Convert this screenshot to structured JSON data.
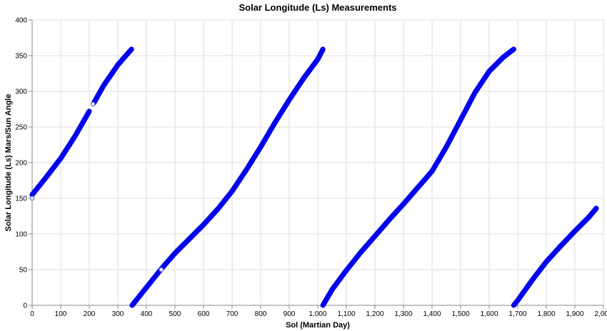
{
  "chart_data": {
    "type": "scatter",
    "title": "Solar Longitude (Ls) Measurements",
    "xlabel": "Sol (Martian Day)",
    "ylabel": "Solar Longitude (Ls) Mars/Sun Angle",
    "xlim": [
      0,
      2000
    ],
    "ylim": [
      0,
      400
    ],
    "x_ticks": [
      0,
      100,
      200,
      300,
      400,
      500,
      600,
      700,
      800,
      900,
      1000,
      1100,
      1200,
      1300,
      1400,
      1500,
      1600,
      1700,
      1800,
      1900,
      2000
    ],
    "x_tick_labels": [
      "0",
      "100",
      "200",
      "300",
      "400",
      "500",
      "600",
      "700",
      "800",
      "900",
      "1,000",
      "1,100",
      "1,200",
      "1,300",
      "1,400",
      "1,500",
      "1,600",
      "1,700",
      "1,800",
      "1,900",
      "2,000"
    ],
    "y_ticks": [
      0,
      50,
      100,
      150,
      200,
      250,
      300,
      350,
      400
    ],
    "y_tick_labels": [
      "0",
      "50",
      "100",
      "150",
      "200",
      "250",
      "300",
      "350",
      "400"
    ],
    "grid": true,
    "marker_color": "#0000ee",
    "hollow_marker_color": "#7f7fd8",
    "series": [
      {
        "segments": [
          {
            "x": [
              0,
              50,
              100,
              150,
              200
            ],
            "y": [
              155,
              180,
              206,
              237,
              272
            ]
          },
          {
            "x": [
              215,
              250,
              300,
              348
            ],
            "y": [
              283,
              308,
              337,
              359
            ]
          },
          {
            "x": [
              350,
              400,
              450,
              500,
              550,
              600,
              650,
              700,
              750,
              800,
              850,
              900,
              950,
              1000,
              1018
            ],
            "y": [
              0,
              25,
              50,
              73,
              93,
              113,
              135,
              160,
              190,
              222,
              256,
              288,
              318,
              345,
              359
            ]
          },
          {
            "x": [
              1018,
              1050,
              1100,
              1150,
              1200,
              1250,
              1300,
              1350,
              1400,
              1450,
              1500,
              1550,
              1600,
              1650,
              1686
            ],
            "y": [
              0,
              22,
              49,
              74,
              97,
              120,
              142,
              165,
              188,
              222,
              260,
              298,
              328,
              348,
              359
            ]
          },
          {
            "x": [
              1686,
              1700,
              1750,
              1800,
              1850,
              1900,
              1950,
              1975
            ],
            "y": [
              0,
              7,
              35,
              61,
              83,
              104,
              124,
              136
            ]
          }
        ]
      }
    ],
    "hollow_points": [
      {
        "x": 0,
        "y": 150
      },
      {
        "x": 213,
        "y": 282
      },
      {
        "x": 452,
        "y": 50
      }
    ]
  }
}
